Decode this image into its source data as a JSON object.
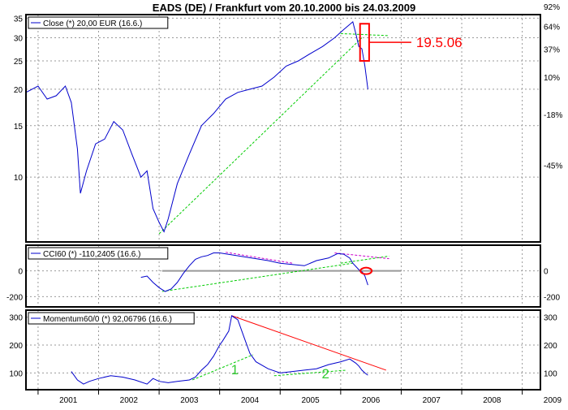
{
  "chart_data": [
    {
      "type": "line",
      "title": "EADS (DE) / Frankfurt vom 20.10.2000 bis 24.03.2009",
      "legend": "Close (*) 20,00 EUR (16.6.)",
      "y_scale": "log",
      "ylim": [
        6,
        36
      ],
      "left_ticks": [
        "35",
        "30",
        "25",
        "20",
        "15",
        "10"
      ],
      "left_tick_values": [
        35,
        30,
        25,
        20,
        15,
        10
      ],
      "right_ticks": [
        "92%",
        "64%",
        "37%",
        "10%",
        "-18%",
        "-45%"
      ],
      "right_tick_values": [
        92,
        64,
        37,
        10,
        -18,
        -45
      ],
      "x": [
        2000.8,
        2001.0,
        2001.15,
        2001.3,
        2001.45,
        2001.55,
        2001.65,
        2001.7,
        2001.8,
        2001.95,
        2002.1,
        2002.25,
        2002.4,
        2002.55,
        2002.7,
        2002.8,
        2002.9,
        2003.0,
        2003.08,
        2003.15,
        2003.3,
        2003.5,
        2003.7,
        2003.9,
        2004.1,
        2004.3,
        2004.5,
        2004.7,
        2004.9,
        2005.1,
        2005.3,
        2005.5,
        2005.7,
        2005.9,
        2006.05,
        2006.2,
        2006.25,
        2006.3,
        2006.35,
        2006.4,
        2006.45
      ],
      "series": [
        {
          "values": [
            19.5,
            20.5,
            18.5,
            19.0,
            20.5,
            18.0,
            12.5,
            8.8,
            10.5,
            13.0,
            13.5,
            15.5,
            14.5,
            12.0,
            10.0,
            10.5,
            7.8,
            7.0,
            6.5,
            7.2,
            9.5,
            12.0,
            15.0,
            16.5,
            18.5,
            19.5,
            20.0,
            20.5,
            22.0,
            24.0,
            25.0,
            26.5,
            28.0,
            30.0,
            32.0,
            34.0,
            31.0,
            28.0,
            27.5,
            24.0,
            20.0
          ]
        }
      ],
      "trendlines": [
        {
          "color": "#00cc00",
          "style": "dashed",
          "x": [
            2003.0,
            2006.35
          ],
          "y": [
            6.4,
            30.0
          ]
        },
        {
          "color": "#00cc00",
          "style": "dashed",
          "x": [
            2006.0,
            2006.8
          ],
          "y": [
            31.0,
            30.5
          ]
        }
      ],
      "annotations": [
        {
          "text": "19.5.06",
          "color": "#ff0000",
          "marker": "rectangle",
          "x_range": [
            2006.32,
            2006.47
          ],
          "y_range": [
            25.0,
            33.5
          ]
        }
      ]
    },
    {
      "type": "line",
      "legend": "CCI60 (*) -110,2405 (16.6.)",
      "ylim": [
        -280,
        200
      ],
      "left_ticks": [
        "0",
        "-200"
      ],
      "left_tick_values": [
        0,
        -200
      ],
      "right_ticks": [
        "0",
        "-200"
      ],
      "right_tick_values": [
        0,
        -200
      ],
      "x": [
        2002.7,
        2002.8,
        2002.9,
        2003.0,
        2003.1,
        2003.2,
        2003.3,
        2003.4,
        2003.5,
        2003.6,
        2003.7,
        2003.8,
        2003.9,
        2004.0,
        2004.2,
        2004.4,
        2004.6,
        2004.8,
        2005.0,
        2005.2,
        2005.4,
        2005.6,
        2005.8,
        2005.95,
        2006.05,
        2006.15,
        2006.2,
        2006.28,
        2006.32,
        2006.36,
        2006.4,
        2006.45
      ],
      "series": [
        {
          "values": [
            -50,
            -40,
            -90,
            -130,
            -160,
            -140,
            -90,
            -20,
            40,
            90,
            110,
            120,
            140,
            140,
            125,
            110,
            95,
            80,
            60,
            50,
            40,
            80,
            100,
            135,
            130,
            100,
            60,
            20,
            0,
            -10,
            -40,
            -110
          ]
        }
      ],
      "reference_line": {
        "y": 0,
        "x_range": [
          2003.05,
          2007.0
        ],
        "color": "#999999"
      },
      "trendlines": [
        {
          "color": "#00cc00",
          "style": "dashed",
          "x": [
            2003.05,
            2006.2
          ],
          "y": [
            -160,
            60
          ]
        },
        {
          "color": "#00cc00",
          "style": "dashed",
          "x": [
            2006.0,
            2006.8
          ],
          "y": [
            60,
            115
          ]
        },
        {
          "color": "#cc00cc",
          "style": "dashed",
          "x": [
            2004.1,
            2005.2
          ],
          "y": [
            145,
            60
          ]
        },
        {
          "color": "#cc00cc",
          "style": "dashed",
          "x": [
            2005.9,
            2006.8
          ],
          "y": [
            140,
            95
          ]
        }
      ],
      "annotations": [
        {
          "marker": "ellipse",
          "color": "#ff0000",
          "x": 2006.42,
          "y": 0
        }
      ]
    },
    {
      "type": "line",
      "legend": "Momentum60/0 (*) 92,06796 (16.6.)",
      "ylim": [
        40,
        325
      ],
      "left_ticks": [
        "300",
        "200",
        "100"
      ],
      "left_tick_values": [
        300,
        200,
        100
      ],
      "right_ticks": [
        "300",
        "200",
        "100"
      ],
      "right_tick_values": [
        300,
        200,
        100
      ],
      "x_ticks": [
        "2001",
        "2002",
        "2003",
        "2004",
        "2005",
        "2006",
        "2007",
        "2008",
        "2009"
      ],
      "x_tick_values": [
        2001,
        2002,
        2003,
        2004,
        2005,
        2006,
        2007,
        2008,
        2009
      ],
      "xlim": [
        2000.8,
        2009.3
      ],
      "x": [
        2001.55,
        2001.65,
        2001.75,
        2001.85,
        2002.0,
        2002.2,
        2002.4,
        2002.6,
        2002.8,
        2002.9,
        2003.0,
        2003.15,
        2003.3,
        2003.5,
        2003.6,
        2003.7,
        2003.8,
        2003.9,
        2004.0,
        2004.05,
        2004.15,
        2004.2,
        2004.3,
        2004.4,
        2004.5,
        2004.6,
        2004.8,
        2005.0,
        2005.2,
        2005.4,
        2005.6,
        2005.8,
        2006.0,
        2006.15,
        2006.25,
        2006.3,
        2006.35,
        2006.4,
        2006.45
      ],
      "series": [
        {
          "values": [
            105,
            75,
            60,
            70,
            80,
            90,
            85,
            75,
            60,
            80,
            70,
            65,
            70,
            75,
            85,
            110,
            130,
            160,
            200,
            215,
            250,
            305,
            290,
            230,
            170,
            140,
            115,
            100,
            105,
            110,
            115,
            130,
            140,
            150,
            135,
            125,
            110,
            100,
            92
          ]
        }
      ],
      "trendlines": [
        {
          "color": "#ff0000",
          "style": "solid",
          "x": [
            2004.2,
            2006.75
          ],
          "y": [
            305,
            110
          ]
        },
        {
          "color": "#00cc00",
          "style": "dashed",
          "x": [
            2003.55,
            2004.55
          ],
          "y": [
            75,
            165
          ]
        },
        {
          "color": "#00cc00",
          "style": "dashed",
          "x": [
            2004.9,
            2006.1
          ],
          "y": [
            90,
            110
          ]
        }
      ],
      "annotations": [
        {
          "text": "1",
          "color": "#33cc33",
          "x": 2004.25,
          "y": 95
        },
        {
          "text": "2",
          "color": "#33cc33",
          "x": 2005.75,
          "y": 80
        }
      ]
    }
  ]
}
